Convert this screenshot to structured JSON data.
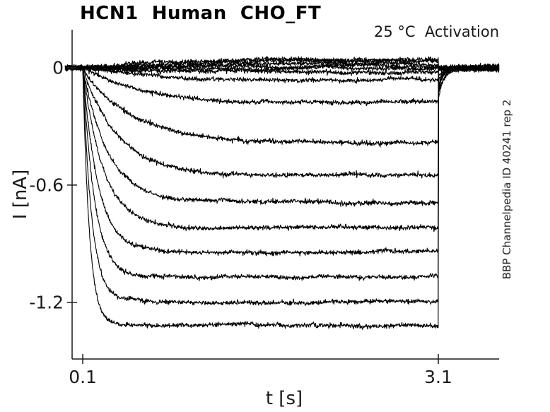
{
  "figure": {
    "title": "HCN1  Human  CHO_FT",
    "annotation": "25 °C  Activation",
    "side_note": "BBP Channelpedia ID 40241 rep 2"
  },
  "colors": {
    "background": "#ffffff",
    "trace": "#000000",
    "axis": "#1a1a1a",
    "text": "#1a1a1a"
  },
  "chart_data": {
    "type": "line",
    "title": "HCN1  Human  CHO_FT",
    "xlabel": "t [s]",
    "ylabel": "I [nA]",
    "x_ticks": [
      0.1,
      3.1
    ],
    "x_tick_labels": [
      "0.1",
      "3.1"
    ],
    "y_ticks": [
      0,
      -0.6,
      -1.2
    ],
    "y_tick_labels": [
      "0",
      "-0.6",
      "-1.2"
    ],
    "xlim": [
      0.01,
      3.613
    ],
    "ylim": [
      -1.49,
      0.195
    ],
    "grid": false,
    "legend": false,
    "description": "Family of whole-cell HCN1 activation current sweeps: holding at ~0 nA, hyperpolarizing step from t=0.1 s to t=3.1 s evoking slowly activating inward currents to different steady-state levels, followed by deactivating tail currents back to 0 nA",
    "t_start_s": -0.048,
    "t_end_s": 3.613,
    "step_start_s": 0.1,
    "step_end_s": 3.1,
    "baseline_nA": 0,
    "tail_fraction": 0.12,
    "tail_tau_s": 0.045,
    "noise_sd_nA": 0.0055,
    "sweeps": [
      {
        "i_ss_nA": 0.05,
        "tau_s": 0.8
      },
      {
        "i_ss_nA": 0.035,
        "tau_s": 0.7
      },
      {
        "i_ss_nA": 0.02,
        "tau_s": 0.6
      },
      {
        "i_ss_nA": 0.008,
        "tau_s": 0.5
      },
      {
        "i_ss_nA": -0.005,
        "tau_s": 0.5
      },
      {
        "i_ss_nA": -0.025,
        "tau_s": 0.7
      },
      {
        "i_ss_nA": -0.06,
        "tau_s": 0.55
      },
      {
        "i_ss_nA": -0.18,
        "tau_s": 0.5
      },
      {
        "i_ss_nA": -0.38,
        "tau_s": 0.4
      },
      {
        "i_ss_nA": -0.55,
        "tau_s": 0.3
      },
      {
        "i_ss_nA": -0.69,
        "tau_s": 0.22
      },
      {
        "i_ss_nA": -0.82,
        "tau_s": 0.17
      },
      {
        "i_ss_nA": -0.94,
        "tau_s": 0.13
      },
      {
        "i_ss_nA": -1.07,
        "tau_s": 0.1
      },
      {
        "i_ss_nA": -1.2,
        "tau_s": 0.075
      },
      {
        "i_ss_nA": -1.32,
        "tau_s": 0.055
      }
    ]
  }
}
